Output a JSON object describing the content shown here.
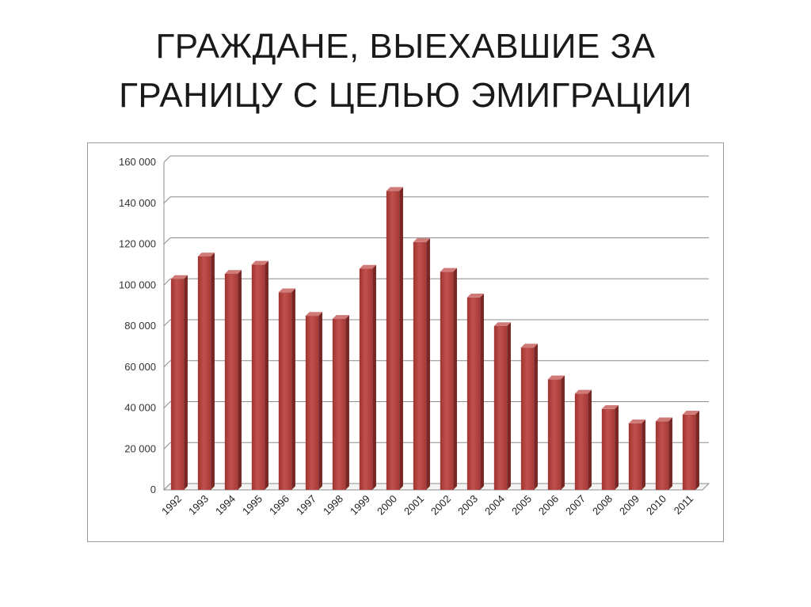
{
  "slide": {
    "title_line1": "ГРАЖДАНЕ, ВЫЕХАВШИЕ ЗА",
    "title_line2": "ГРАНИЦУ С ЦЕЛЬЮ ЭМИГРАЦИИ"
  },
  "chart_data": {
    "type": "bar",
    "title": "",
    "xlabel": "",
    "ylabel": "",
    "categories": [
      "1992",
      "1993",
      "1994",
      "1995",
      "1996",
      "1997",
      "1998",
      "1999",
      "2000",
      "2001",
      "2002",
      "2003",
      "2004",
      "2005",
      "2006",
      "2007",
      "2008",
      "2009",
      "2010",
      "2011"
    ],
    "values": [
      103000,
      114000,
      105500,
      110000,
      96500,
      85000,
      83500,
      108000,
      146000,
      121000,
      106500,
      94000,
      80000,
      69500,
      54000,
      47000,
      39500,
      32500,
      33500,
      36800
    ],
    "ylim": [
      0,
      160000
    ],
    "yticks": [
      0,
      20000,
      40000,
      60000,
      80000,
      100000,
      120000,
      140000,
      160000
    ],
    "ytick_labels": [
      "0",
      "20 000",
      "40 000",
      "60 000",
      "80 000",
      "100 000",
      "120 000",
      "140 000",
      "160 000"
    ],
    "grid": true,
    "legend": "none",
    "bar_color": "#c0504d"
  }
}
